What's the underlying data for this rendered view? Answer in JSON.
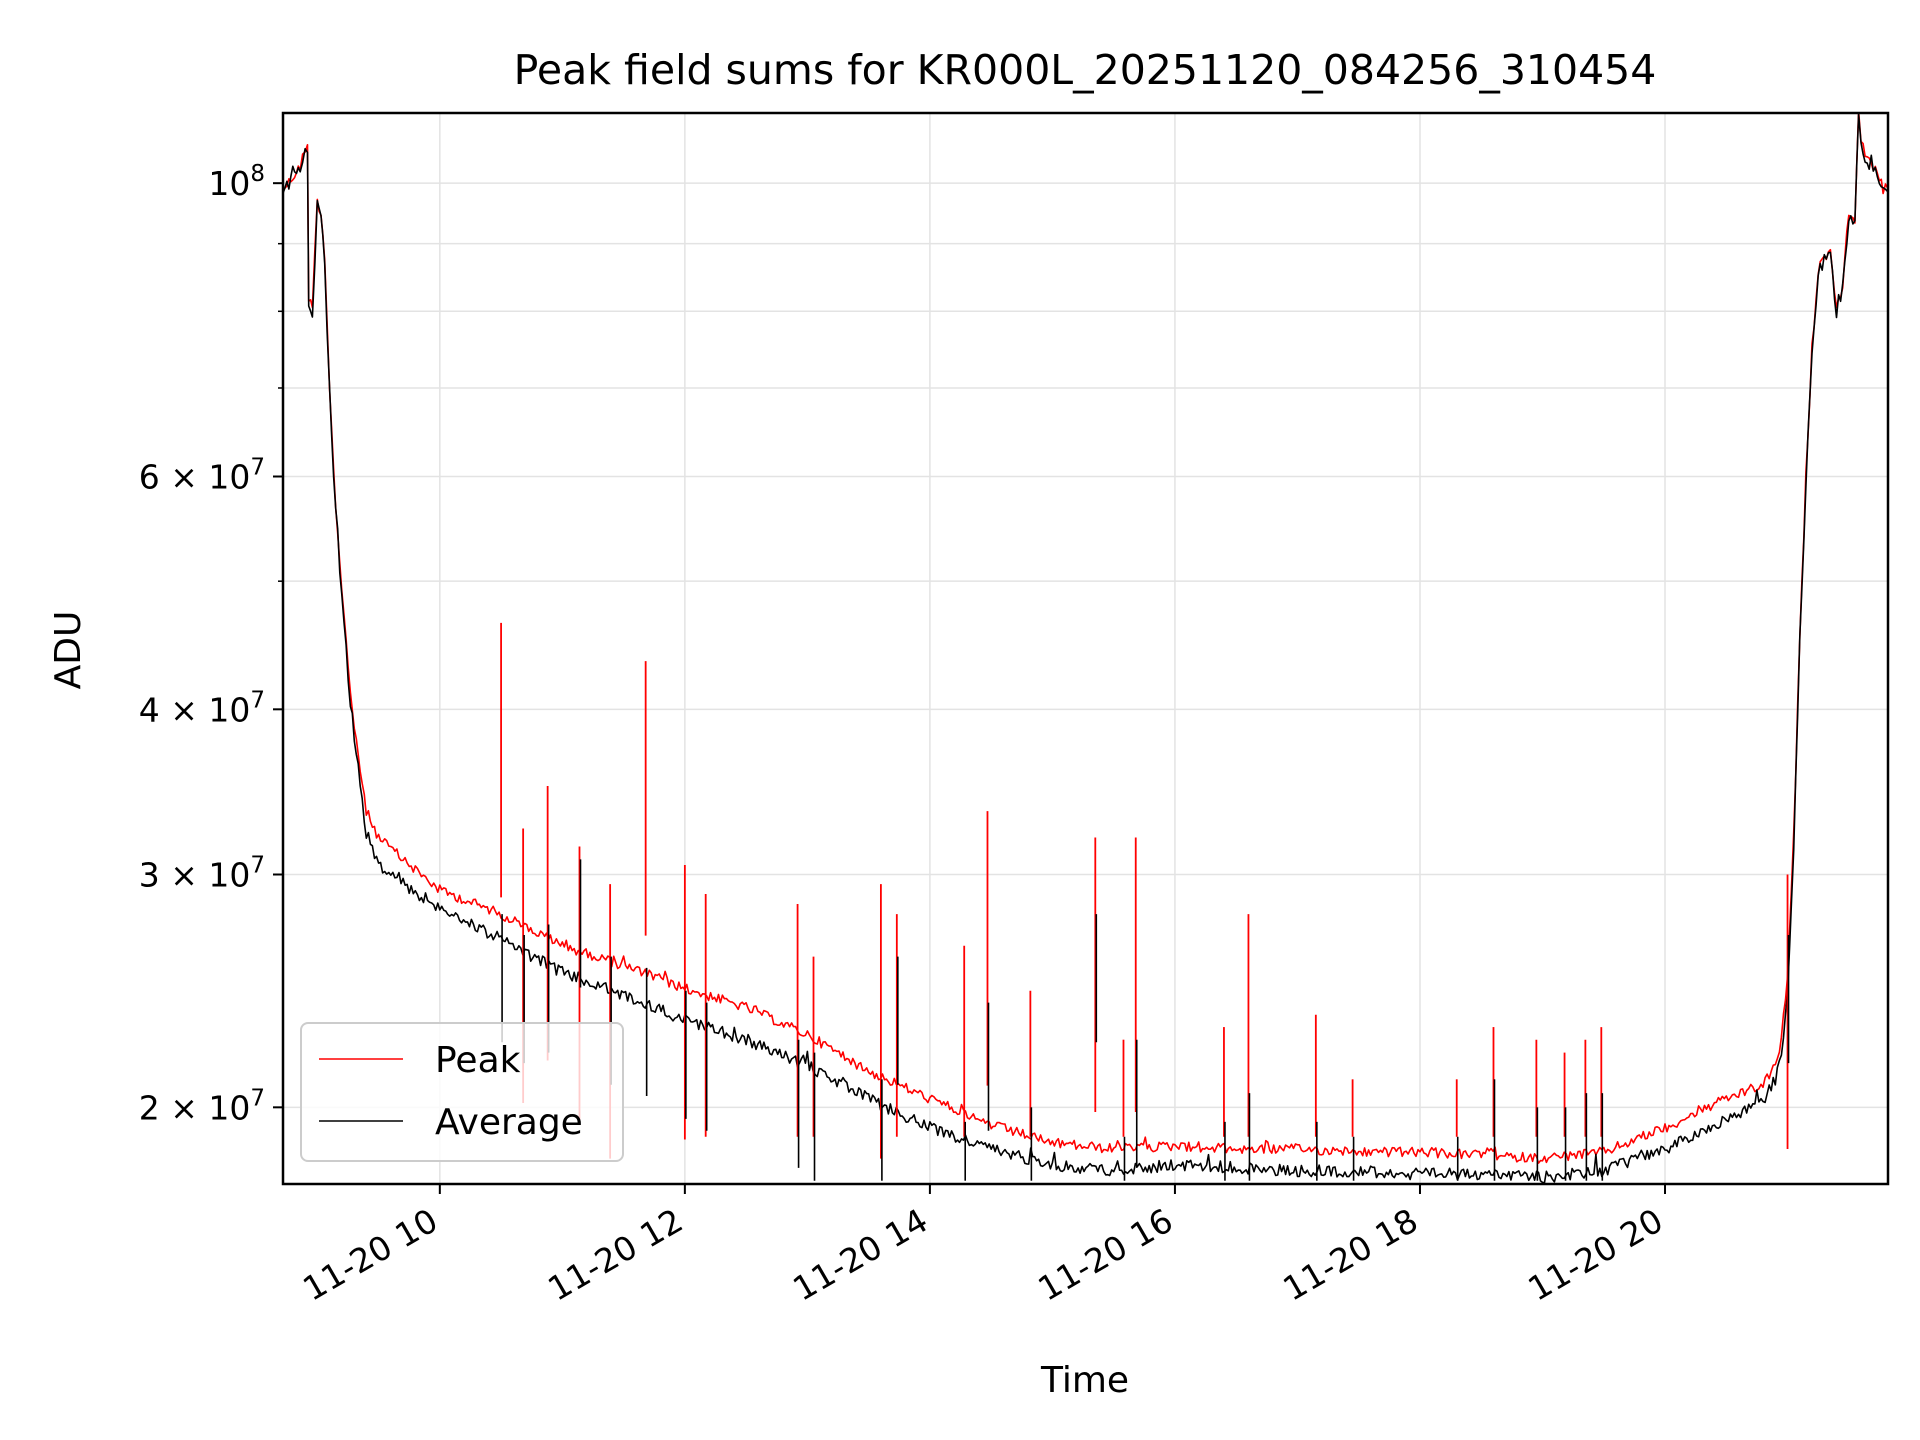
{
  "chart_data": {
    "type": "line",
    "title": "Peak field sums for KR000L_20251120_084256_310454",
    "xlabel": "Time",
    "ylabel": "ADU",
    "xlim": [
      8.72,
      21.82
    ],
    "ylim": [
      17500000,
      113000000
    ],
    "yscale": "log",
    "grid": true,
    "legend_position": "lower-left",
    "x_ticks": [
      {
        "value": 10,
        "label": "11-20 10"
      },
      {
        "value": 12,
        "label": "11-20 12"
      },
      {
        "value": 14,
        "label": "11-20 14"
      },
      {
        "value": 16,
        "label": "11-20 16"
      },
      {
        "value": 18,
        "label": "11-20 18"
      },
      {
        "value": 20,
        "label": "11-20 20"
      }
    ],
    "y_major_ticks": [
      {
        "value": 20000000,
        "base": "2 × 10",
        "exp": "7"
      },
      {
        "value": 30000000,
        "base": "3 × 10",
        "exp": "7"
      },
      {
        "value": 40000000,
        "base": "4 × 10",
        "exp": "7"
      },
      {
        "value": 60000000,
        "base": "6 × 10",
        "exp": "7"
      },
      {
        "value": 100000000,
        "base": "10",
        "exp": "8"
      }
    ],
    "y_minor_gridlines": [
      50000000,
      70000000,
      80000000,
      90000000
    ],
    "series": [
      {
        "name": "Peak",
        "color": "#ff0000",
        "x": [
          8.72,
          8.8,
          8.86,
          8.9,
          8.92,
          8.93,
          8.96,
          9.0,
          9.03,
          9.06,
          9.1,
          9.15,
          9.2,
          9.27,
          9.35,
          9.4,
          9.5,
          9.7,
          10.0,
          10.5,
          11.0,
          11.5,
          12.0,
          12.5,
          13.0,
          13.5,
          14.0,
          14.5,
          15.0,
          15.5,
          16.0,
          16.5,
          17.0,
          17.5,
          18.0,
          18.5,
          19.0,
          19.5,
          20.0,
          20.5,
          20.8,
          20.9,
          20.95,
          21.0,
          21.05,
          21.1,
          21.15,
          21.2,
          21.25,
          21.3,
          21.35,
          21.4,
          21.45,
          21.5,
          21.55,
          21.58,
          21.6,
          21.65,
          21.7,
          21.75,
          21.78,
          21.82
        ],
        "y": [
          99000000,
          101000000,
          103000000,
          106000000,
          106500000,
          82000000,
          81000000,
          97000000,
          95000000,
          88000000,
          70000000,
          57000000,
          49000000,
          41000000,
          36000000,
          33500000,
          32000000,
          30800000,
          29200000,
          28000000,
          26500000,
          25600000,
          24600000,
          23800000,
          22700000,
          21300000,
          20300000,
          19400000,
          18800000,
          18600000,
          18700000,
          18600000,
          18600000,
          18500000,
          18500000,
          18400000,
          18300000,
          18500000,
          19300000,
          20300000,
          20800000,
          21500000,
          22500000,
          25000000,
          32000000,
          45000000,
          60000000,
          75000000,
          86000000,
          88000000,
          89000000,
          80000000,
          84000000,
          95000000,
          94000000,
          113000000,
          108000000,
          104000000,
          103000000,
          101000000,
          99000000,
          99000000
        ]
      },
      {
        "name": "Average",
        "color": "#000000",
        "x": [
          8.72,
          8.8,
          8.86,
          8.9,
          8.92,
          8.93,
          8.96,
          9.0,
          9.03,
          9.06,
          9.1,
          9.15,
          9.2,
          9.27,
          9.35,
          9.4,
          9.5,
          9.7,
          10.0,
          10.5,
          11.0,
          11.5,
          12.0,
          12.5,
          13.0,
          13.5,
          14.0,
          14.5,
          15.0,
          15.5,
          16.0,
          16.5,
          17.0,
          17.5,
          18.0,
          18.5,
          19.0,
          19.5,
          20.0,
          20.5,
          20.8,
          20.9,
          20.95,
          21.0,
          21.05,
          21.1,
          21.15,
          21.2,
          21.25,
          21.3,
          21.35,
          21.4,
          21.45,
          21.5,
          21.55,
          21.58,
          21.6,
          21.65,
          21.7,
          21.75,
          21.78,
          21.82
        ],
        "y": [
          98500000,
          100500000,
          102500000,
          105500000,
          106000000,
          81500000,
          80000000,
          96500000,
          94500000,
          87500000,
          69500000,
          56500000,
          48500000,
          40500000,
          35000000,
          32000000,
          30500000,
          29500000,
          28300000,
          26800000,
          25300000,
          24300000,
          23300000,
          22500000,
          21500000,
          20300000,
          19300000,
          18600000,
          18100000,
          17900000,
          18100000,
          18000000,
          17900000,
          17900000,
          17800000,
          17800000,
          17700000,
          17900000,
          18600000,
          19600000,
          20200000,
          21000000,
          22000000,
          24500000,
          31500000,
          44500000,
          59500000,
          74500000,
          85500000,
          87500000,
          88500000,
          79500000,
          83500000,
          94500000,
          93500000,
          112500000,
          107500000,
          103500000,
          102500000,
          100500000,
          98500000,
          98500000
        ]
      }
    ],
    "peak_spikes": [
      {
        "x": 10.5,
        "peak": 46500000,
        "average": 28000000
      },
      {
        "x": 10.68,
        "peak": 32500000,
        "average": 27000000
      },
      {
        "x": 10.88,
        "peak": 35000000,
        "average": 27500000
      },
      {
        "x": 11.14,
        "peak": 31500000,
        "average": 30800000
      },
      {
        "x": 11.39,
        "peak": 29500000,
        "average": 26000000
      },
      {
        "x": 11.68,
        "peak": 43500000,
        "average": 25500000
      },
      {
        "x": 12.0,
        "peak": 30500000,
        "average": 24500000
      },
      {
        "x": 12.17,
        "peak": 29000000,
        "average": 24000000
      },
      {
        "x": 12.92,
        "peak": 28500000,
        "average": 22500000
      },
      {
        "x": 13.05,
        "peak": 26000000,
        "average": 22000000
      },
      {
        "x": 13.6,
        "peak": 29500000,
        "average": 21000000
      },
      {
        "x": 13.73,
        "peak": 28000000,
        "average": 26000000
      },
      {
        "x": 14.28,
        "peak": 26500000,
        "average": 19500000
      },
      {
        "x": 14.47,
        "peak": 33500000,
        "average": 24000000
      },
      {
        "x": 14.82,
        "peak": 24500000,
        "average": 20000000
      },
      {
        "x": 15.35,
        "peak": 32000000,
        "average": 28000000
      },
      {
        "x": 15.58,
        "peak": 22500000,
        "average": 19000000
      },
      {
        "x": 15.68,
        "peak": 32000000,
        "average": 22500000
      },
      {
        "x": 16.4,
        "peak": 23000000,
        "average": 19500000
      },
      {
        "x": 16.6,
        "peak": 28000000,
        "average": 20500000
      },
      {
        "x": 17.15,
        "peak": 23500000,
        "average": 19500000
      },
      {
        "x": 17.45,
        "peak": 21000000,
        "average": 19000000
      },
      {
        "x": 18.3,
        "peak": 21000000,
        "average": 19000000
      },
      {
        "x": 18.6,
        "peak": 23000000,
        "average": 21000000
      },
      {
        "x": 18.95,
        "peak": 22500000,
        "average": 20000000
      },
      {
        "x": 19.18,
        "peak": 22000000,
        "average": 20000000
      },
      {
        "x": 19.35,
        "peak": 22500000,
        "average": 20500000
      },
      {
        "x": 19.48,
        "peak": 23000000,
        "average": 20500000
      },
      {
        "x": 21.0,
        "peak": 30000000,
        "average": 27000000
      }
    ]
  }
}
